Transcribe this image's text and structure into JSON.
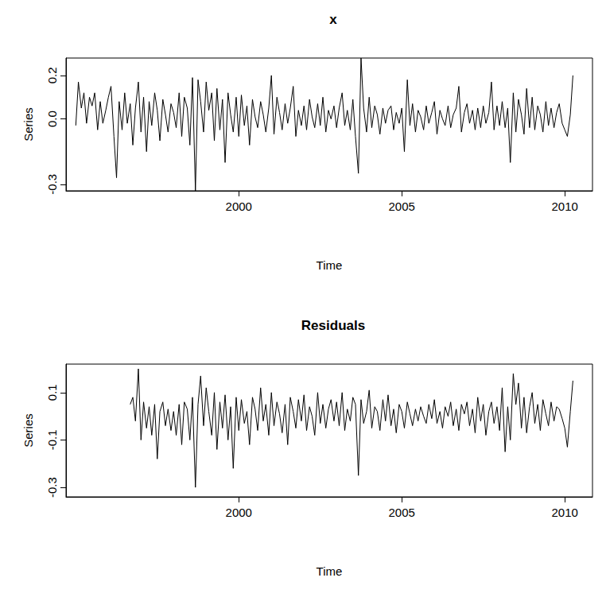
{
  "chart_data": [
    {
      "type": "line",
      "title": "x",
      "x_label": "Time",
      "y_label": "Series",
      "color": "#000000",
      "grid": false,
      "xlim": [
        1994.7,
        2010.85
      ],
      "xticks": [
        2000,
        2005,
        2010
      ],
      "ylim": [
        -0.33,
        0.28
      ],
      "yticks": [
        -0.3,
        {
          "value": 0,
          "label": "0.0"
        },
        0.2
      ],
      "x": [
        1995,
        1995.08,
        1995.17,
        1995.25,
        1995.33,
        1995.42,
        1995.5,
        1995.58,
        1995.67,
        1995.75,
        1995.83,
        1995.92,
        1996,
        1996.08,
        1996.17,
        1996.25,
        1996.33,
        1996.42,
        1996.5,
        1996.58,
        1996.67,
        1996.75,
        1996.83,
        1996.92,
        1997,
        1997.08,
        1997.17,
        1997.25,
        1997.33,
        1997.42,
        1997.5,
        1997.58,
        1997.67,
        1997.75,
        1997.83,
        1997.92,
        1998,
        1998.08,
        1998.17,
        1998.25,
        1998.33,
        1998.42,
        1998.5,
        1998.58,
        1998.67,
        1998.75,
        1998.83,
        1998.92,
        1999,
        1999.08,
        1999.17,
        1999.25,
        1999.33,
        1999.42,
        1999.5,
        1999.58,
        1999.67,
        1999.75,
        1999.83,
        1999.92,
        2000,
        2000.08,
        2000.17,
        2000.25,
        2000.33,
        2000.42,
        2000.5,
        2000.58,
        2000.67,
        2000.75,
        2000.83,
        2000.92,
        2001,
        2001.08,
        2001.17,
        2001.25,
        2001.33,
        2001.42,
        2001.5,
        2001.58,
        2001.67,
        2001.75,
        2001.83,
        2001.92,
        2002,
        2002.08,
        2002.17,
        2002.25,
        2002.33,
        2002.42,
        2002.5,
        2002.58,
        2002.67,
        2002.75,
        2002.83,
        2002.92,
        2003,
        2003.08,
        2003.17,
        2003.25,
        2003.33,
        2003.42,
        2003.5,
        2003.58,
        2003.67,
        2003.75,
        2003.83,
        2003.92,
        2004,
        2004.08,
        2004.17,
        2004.25,
        2004.33,
        2004.42,
        2004.5,
        2004.58,
        2004.67,
        2004.75,
        2004.83,
        2004.92,
        2005,
        2005.08,
        2005.17,
        2005.25,
        2005.33,
        2005.42,
        2005.5,
        2005.58,
        2005.67,
        2005.75,
        2005.83,
        2005.92,
        2006,
        2006.08,
        2006.17,
        2006.25,
        2006.33,
        2006.42,
        2006.5,
        2006.58,
        2006.67,
        2006.75,
        2006.83,
        2006.92,
        2007,
        2007.08,
        2007.17,
        2007.25,
        2007.33,
        2007.42,
        2007.5,
        2007.58,
        2007.67,
        2007.75,
        2007.83,
        2007.92,
        2008,
        2008.08,
        2008.17,
        2008.25,
        2008.33,
        2008.42,
        2008.5,
        2008.58,
        2008.67,
        2008.75,
        2008.83,
        2008.92,
        2009,
        2009.08,
        2009.17,
        2009.25,
        2009.33,
        2009.42,
        2009.5,
        2009.58,
        2009.67,
        2009.75,
        2009.83,
        2009.92,
        2010,
        2010.08,
        2010.17,
        2010.25
      ],
      "values": [
        -0.03,
        0.17,
        0.05,
        0.12,
        -0.02,
        0.1,
        0.06,
        0.12,
        -0.05,
        0.08,
        -0.02,
        0.04,
        0.1,
        0.15,
        -0.08,
        -0.27,
        0.08,
        -0.05,
        0.12,
        -0.02,
        0.07,
        -0.12,
        0.05,
        0.17,
        -0.06,
        0.1,
        -0.15,
        0.08,
        -0.03,
        0.12,
        0.04,
        -0.1,
        0.09,
        0.02,
        -0.06,
        0.07,
        0.03,
        -0.04,
        0.12,
        -0.08,
        0.1,
        0.05,
        -0.12,
        0.19,
        -0.33,
        0.18,
        0.08,
        -0.06,
        0.17,
        0.04,
        0.12,
        -0.1,
        0.14,
        -0.05,
        0.09,
        -0.2,
        0.12,
        0.02,
        -0.06,
        0.1,
        -0.08,
        0.11,
        -0.03,
        0.06,
        -0.12,
        0.09,
        0.01,
        -0.04,
        0.08,
        0.02,
        -0.06,
        0.05,
        0.2,
        -0.07,
        0.1,
        0.03,
        -0.05,
        0.07,
        -0.02,
        0.05,
        0.15,
        -0.08,
        0.04,
        -0.03,
        0.06,
        -0.05,
        0.09,
        0.01,
        -0.04,
        0.07,
        -0.03,
        0.1,
        -0.06,
        0.04,
        0.0,
        0.06,
        -0.04,
        0.05,
        0.12,
        -0.03,
        0.04,
        -0.05,
        0.09,
        -0.08,
        -0.25,
        0.28,
        0.05,
        -0.06,
        0.1,
        -0.04,
        0.06,
        0.02,
        -0.07,
        0.05,
        -0.02,
        0.04,
        0.06,
        -0.05,
        0.03,
        -0.02,
        0.05,
        -0.15,
        0.18,
        -0.03,
        0.07,
        -0.06,
        0.04,
        0.01,
        -0.05,
        0.06,
        -0.02,
        0.03,
        0.08,
        -0.07,
        0.04,
        0.0,
        -0.03,
        0.06,
        -0.04,
        0.02,
        0.05,
        0.15,
        -0.06,
        0.03,
        0.07,
        -0.02,
        0.04,
        -0.05,
        0.05,
        -0.04,
        0.06,
        -0.02,
        0.03,
        0.17,
        -0.05,
        0.06,
        -0.03,
        0.08,
        -0.04,
        0.05,
        -0.2,
        0.12,
        -0.06,
        0.09,
        0.02,
        -0.07,
        0.14,
        -0.04,
        0.1,
        -0.05,
        0.06,
        0.02,
        -0.06,
        0.08,
        -0.03,
        0.05,
        -0.04,
        0.03,
        0.07,
        -0.02,
        -0.05,
        -0.08,
        0.02,
        0.2
      ]
    },
    {
      "type": "line",
      "title": "Residuals",
      "x_label": "Time",
      "y_label": "Series",
      "color": "#000000",
      "grid": false,
      "xlim": [
        1994.7,
        2010.85
      ],
      "xticks": [
        2000,
        2005,
        2010
      ],
      "ylim": [
        -0.34,
        0.22
      ],
      "yticks": [
        -0.3,
        -0.1,
        0.1
      ],
      "x": [
        1996.67,
        1996.75,
        1996.83,
        1996.92,
        1997,
        1997.08,
        1997.17,
        1997.25,
        1997.33,
        1997.42,
        1997.5,
        1997.58,
        1997.67,
        1997.75,
        1997.83,
        1997.92,
        1998,
        1998.08,
        1998.17,
        1998.25,
        1998.33,
        1998.42,
        1998.5,
        1998.58,
        1998.67,
        1998.75,
        1998.83,
        1998.92,
        1999,
        1999.08,
        1999.17,
        1999.25,
        1999.33,
        1999.42,
        1999.5,
        1999.58,
        1999.67,
        1999.75,
        1999.83,
        1999.92,
        2000,
        2000.08,
        2000.17,
        2000.25,
        2000.33,
        2000.42,
        2000.5,
        2000.58,
        2000.67,
        2000.75,
        2000.83,
        2000.92,
        2001,
        2001.08,
        2001.17,
        2001.25,
        2001.33,
        2001.42,
        2001.5,
        2001.58,
        2001.67,
        2001.75,
        2001.83,
        2001.92,
        2002,
        2002.08,
        2002.17,
        2002.25,
        2002.33,
        2002.42,
        2002.5,
        2002.58,
        2002.67,
        2002.75,
        2002.83,
        2002.92,
        2003,
        2003.08,
        2003.17,
        2003.25,
        2003.33,
        2003.42,
        2003.5,
        2003.58,
        2003.67,
        2003.75,
        2003.83,
        2003.92,
        2004,
        2004.08,
        2004.17,
        2004.25,
        2004.33,
        2004.42,
        2004.5,
        2004.58,
        2004.67,
        2004.75,
        2004.83,
        2004.92,
        2005,
        2005.08,
        2005.17,
        2005.25,
        2005.33,
        2005.42,
        2005.5,
        2005.58,
        2005.67,
        2005.75,
        2005.83,
        2005.92,
        2006,
        2006.08,
        2006.17,
        2006.25,
        2006.33,
        2006.42,
        2006.5,
        2006.58,
        2006.67,
        2006.75,
        2006.83,
        2006.92,
        2007,
        2007.08,
        2007.17,
        2007.25,
        2007.33,
        2007.42,
        2007.5,
        2007.58,
        2007.67,
        2007.75,
        2007.83,
        2007.92,
        2008,
        2008.08,
        2008.17,
        2008.25,
        2008.33,
        2008.42,
        2008.5,
        2008.58,
        2008.67,
        2008.75,
        2008.83,
        2008.92,
        2009,
        2009.08,
        2009.17,
        2009.25,
        2009.33,
        2009.42,
        2009.5,
        2009.58,
        2009.67,
        2009.75,
        2009.83,
        2009.92,
        2010,
        2010.08,
        2010.17,
        2010.25
      ],
      "values": [
        0.05,
        0.08,
        -0.02,
        0.2,
        -0.1,
        0.06,
        -0.05,
        0.04,
        -0.08,
        0.05,
        -0.18,
        0.02,
        0.06,
        -0.04,
        0.03,
        -0.06,
        0.02,
        -0.08,
        0.05,
        -0.12,
        0.06,
        0.03,
        -0.1,
        0.08,
        -0.3,
        0.05,
        0.17,
        -0.04,
        0.12,
        0.02,
        -0.08,
        0.1,
        -0.14,
        0.06,
        -0.05,
        0.09,
        -0.1,
        0.04,
        -0.22,
        0.08,
        -0.06,
        0.07,
        -0.03,
        0.02,
        -0.12,
        0.08,
        0.03,
        -0.06,
        0.12,
        -0.02,
        0.05,
        -0.08,
        0.1,
        -0.04,
        0.06,
        0.01,
        -0.07,
        0.05,
        -0.12,
        0.08,
        0.02,
        -0.05,
        0.07,
        -0.02,
        0.09,
        -0.06,
        0.04,
        0.0,
        -0.08,
        0.1,
        -0.03,
        0.05,
        -0.05,
        0.03,
        0.07,
        -0.02,
        0.06,
        -0.04,
        0.1,
        -0.06,
        0.03,
        -0.02,
        0.08,
        0.05,
        -0.25,
        0.07,
        -0.03,
        0.02,
        0.11,
        -0.05,
        0.04,
        0.02,
        -0.06,
        0.07,
        -0.02,
        0.09,
        -0.04,
        0.03,
        -0.07,
        0.05,
        0.02,
        -0.05,
        0.06,
        0.01,
        -0.04,
        0.03,
        -0.02,
        0.04,
        0.0,
        -0.03,
        0.05,
        -0.01,
        0.07,
        -0.03,
        0.02,
        -0.05,
        0.04,
        0.0,
        0.06,
        -0.04,
        0.03,
        -0.06,
        0.05,
        0.01,
        0.06,
        -0.04,
        0.03,
        -0.07,
        0.08,
        -0.02,
        0.05,
        -0.08,
        0.02,
        0.06,
        -0.03,
        0.04,
        -0.06,
        0.12,
        -0.15,
        0.04,
        -0.1,
        0.18,
        0.05,
        0.14,
        -0.05,
        0.08,
        -0.07,
        0.04,
        0.1,
        -0.03,
        0.05,
        -0.06,
        0.07,
        0.01,
        -0.04,
        0.06,
        -0.02,
        0.04,
        0.03,
        -0.01,
        -0.05,
        -0.13,
        0.02,
        0.15
      ]
    }
  ]
}
